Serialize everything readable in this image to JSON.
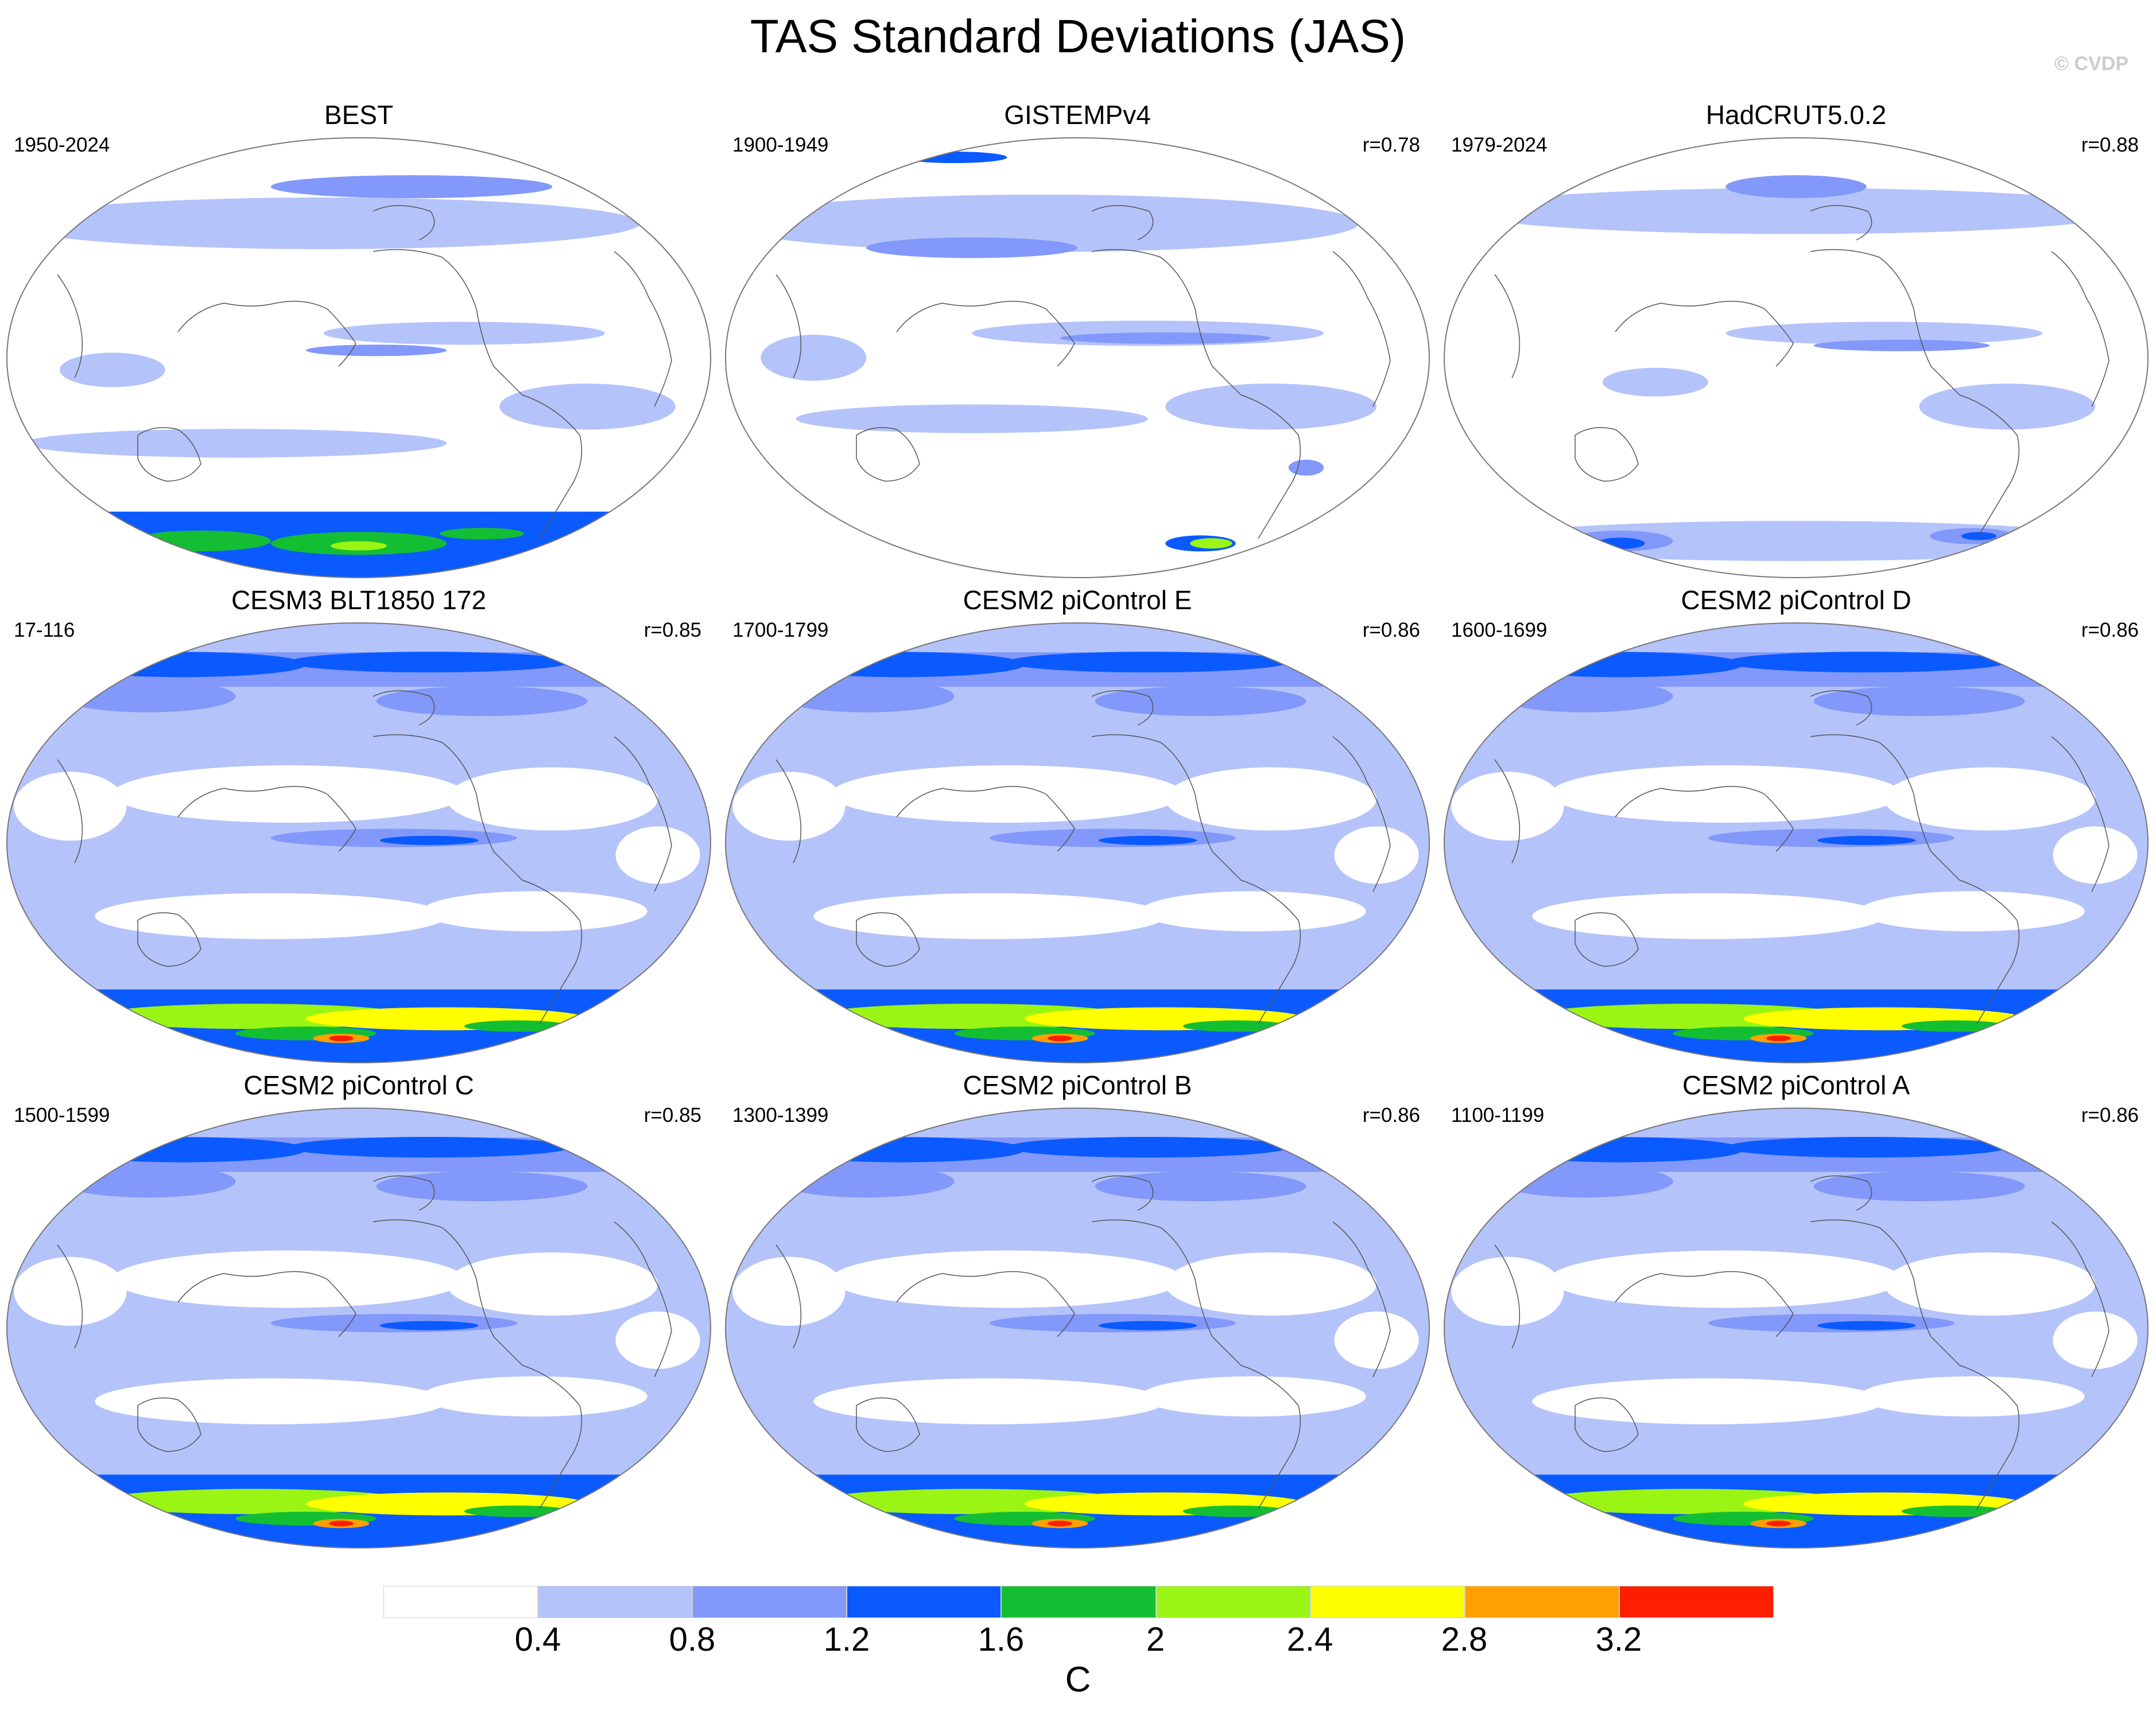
{
  "figure": {
    "title": "TAS Standard Deviations (JAS)",
    "copyright": "© CVDP"
  },
  "panels": [
    {
      "id": "best",
      "title": "BEST",
      "period": "1950-2024",
      "correlation": "",
      "pattern": "obs_best"
    },
    {
      "id": "gistemp",
      "title": "GISTEMPv4",
      "period": "1900-1949",
      "correlation": "r=0.78",
      "pattern": "obs_gistemp"
    },
    {
      "id": "hadcrut",
      "title": "HadCRUT5.0.2",
      "period": "1979-2024",
      "correlation": "r=0.88",
      "pattern": "obs_hadcrut"
    },
    {
      "id": "cesm3",
      "title": "CESM3 BLT1850 172",
      "period": "17-116",
      "correlation": "r=0.85",
      "pattern": "model"
    },
    {
      "id": "picontrol-e",
      "title": "CESM2 piControl E",
      "period": "1700-1799",
      "correlation": "r=0.86",
      "pattern": "model"
    },
    {
      "id": "picontrol-d",
      "title": "CESM2 piControl D",
      "period": "1600-1699",
      "correlation": "r=0.86",
      "pattern": "model"
    },
    {
      "id": "picontrol-c",
      "title": "CESM2 piControl C",
      "period": "1500-1599",
      "correlation": "r=0.85",
      "pattern": "model"
    },
    {
      "id": "picontrol-b",
      "title": "CESM2 piControl B",
      "period": "1300-1399",
      "correlation": "r=0.86",
      "pattern": "model"
    },
    {
      "id": "picontrol-a",
      "title": "CESM2 piControl A",
      "period": "1100-1199",
      "correlation": "r=0.86",
      "pattern": "model"
    }
  ],
  "colorbar": {
    "levels": [
      "0.4",
      "0.8",
      "1.2",
      "1.6",
      "2",
      "2.4",
      "2.8",
      "3.2"
    ],
    "colors": [
      "#ffffff",
      "#b4c3fa",
      "#8298fa",
      "#0a5aff",
      "#14be32",
      "#9bf514",
      "#ffff00",
      "#ffa000",
      "#ff1e00"
    ],
    "units": "C"
  }
}
